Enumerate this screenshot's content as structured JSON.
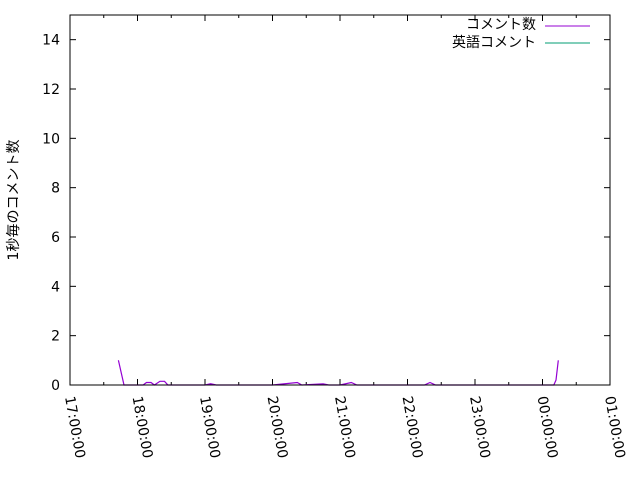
{
  "chart_data": {
    "type": "line",
    "title": "",
    "xlabel": "",
    "ylabel": "1秒毎のコメント数",
    "xlim": [
      "17:00:00",
      "01:00:00"
    ],
    "ylim": [
      0,
      15
    ],
    "x_ticks": [
      "17:00:00",
      "18:00:00",
      "19:00:00",
      "20:00:00",
      "21:00:00",
      "22:00:00",
      "23:00:00",
      "00:00:00",
      "01:00:00"
    ],
    "y_ticks": [
      "0",
      "2",
      "4",
      "6",
      "8",
      "10",
      "12",
      "14"
    ],
    "grid": false,
    "legend_position": "top-right",
    "series": [
      {
        "name": "コメント数",
        "color": "#9400d3",
        "points": [
          [
            "17:43:00",
            1
          ],
          [
            "17:48:00",
            0
          ],
          [
            "18:05:00",
            0
          ],
          [
            "18:08:00",
            0.1
          ],
          [
            "18:12:00",
            0.1
          ],
          [
            "18:15:00",
            0
          ],
          [
            "18:20:00",
            0.15
          ],
          [
            "18:24:00",
            0.15
          ],
          [
            "18:27:00",
            0
          ],
          [
            "19:00:00",
            0
          ],
          [
            "19:05:00",
            0.05
          ],
          [
            "19:10:00",
            0
          ],
          [
            "20:00:00",
            0
          ],
          [
            "20:22:00",
            0.1
          ],
          [
            "20:26:00",
            0
          ],
          [
            "20:45:00",
            0.05
          ],
          [
            "20:50:00",
            0
          ],
          [
            "21:00:00",
            0
          ],
          [
            "21:10:00",
            0.1
          ],
          [
            "21:15:00",
            0
          ],
          [
            "22:15:00",
            0
          ],
          [
            "22:20:00",
            0.1
          ],
          [
            "22:25:00",
            0
          ],
          [
            "23:00:00",
            0
          ],
          [
            "00:10:00",
            0
          ],
          [
            "00:12:00",
            0.2
          ],
          [
            "00:14:00",
            1
          ]
        ]
      },
      {
        "name": "英語コメント",
        "color": "#009e73",
        "points": []
      }
    ]
  }
}
